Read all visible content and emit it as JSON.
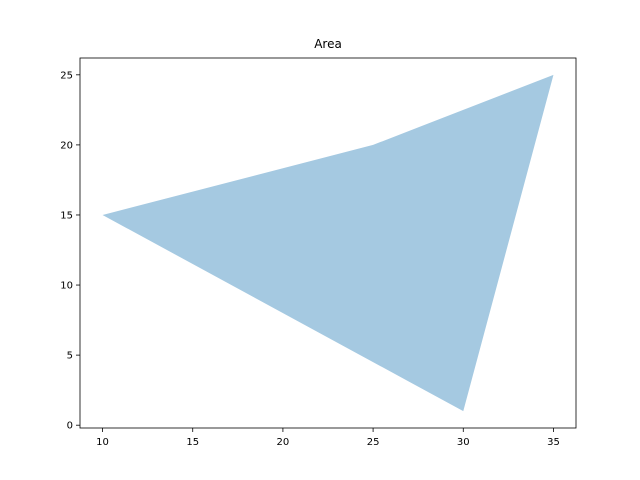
{
  "chart_data": {
    "type": "area",
    "title": "Area",
    "xlabel": "",
    "ylabel": "",
    "xlim": [
      8.75,
      36.25
    ],
    "ylim": [
      -0.2,
      26.2
    ],
    "x_ticks": [
      10,
      15,
      20,
      25,
      30,
      35
    ],
    "y_ticks": [
      0,
      5,
      10,
      15,
      20,
      25
    ],
    "grid": false,
    "polygon": [
      {
        "x": 10,
        "y": 15
      },
      {
        "x": 25,
        "y": 20
      },
      {
        "x": 35,
        "y": 25
      },
      {
        "x": 30,
        "y": 1
      }
    ],
    "fill_color": "#a5c9e1"
  }
}
